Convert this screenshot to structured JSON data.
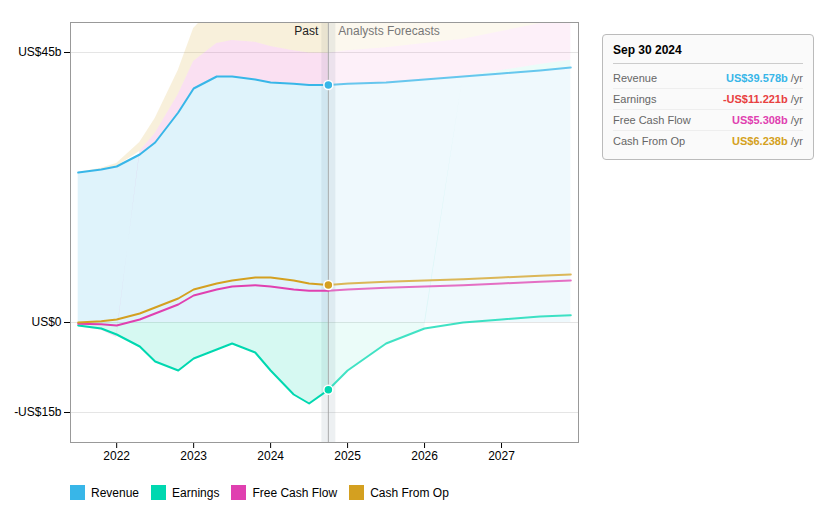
{
  "chart_data": {
    "type": "line",
    "xlim": [
      2021.4,
      2028.0
    ],
    "xticks": [
      2022,
      2023,
      2024,
      2025,
      2026,
      2027
    ],
    "ylim": [
      -20,
      50
    ],
    "yticks": [
      {
        "value": 45,
        "label": "US$45b"
      },
      {
        "value": 0,
        "label": "US$0"
      },
      {
        "value": -15,
        "label": "-US$15b"
      }
    ],
    "grid": true,
    "legend": "lower left",
    "divider_x": 2024.75,
    "annotations": [
      "Past",
      "Analysts Forecasts"
    ],
    "series": [
      {
        "name": "Revenue",
        "color": "#38b6e8",
        "past": {
          "x": [
            2021.5,
            2021.8,
            2022.0,
            2022.3,
            2022.5,
            2022.8,
            2023.0,
            2023.3,
            2023.5,
            2023.8,
            2024.0,
            2024.3,
            2024.5,
            2024.75
          ],
          "values": [
            25,
            25.5,
            26,
            28,
            30,
            35,
            39,
            41,
            41,
            40.5,
            40,
            39.8,
            39.6,
            39.578
          ]
        },
        "forecast": {
          "x": [
            2024.75,
            2025.0,
            2025.5,
            2026.0,
            2026.5,
            2027.0,
            2027.5,
            2027.9
          ],
          "values": [
            39.578,
            39.8,
            40.0,
            40.5,
            41.0,
            41.5,
            42.0,
            42.5
          ]
        }
      },
      {
        "name": "Earnings",
        "color": "#00d8b0",
        "past": {
          "x": [
            2021.5,
            2021.8,
            2022.0,
            2022.3,
            2022.5,
            2022.8,
            2023.0,
            2023.3,
            2023.5,
            2023.8,
            2024.0,
            2024.3,
            2024.5,
            2024.75
          ],
          "values": [
            -0.5,
            -1.0,
            -2.0,
            -4.0,
            -6.5,
            -8.0,
            -6.0,
            -4.5,
            -3.5,
            -5.0,
            -8.0,
            -12.0,
            -13.5,
            -11.221
          ]
        },
        "forecast": {
          "x": [
            2024.75,
            2025.0,
            2025.5,
            2026.0,
            2026.5,
            2027.0,
            2027.5,
            2027.9
          ],
          "values": [
            -11.221,
            -8.0,
            -3.5,
            -1.0,
            0.0,
            0.5,
            1.0,
            1.2
          ]
        }
      },
      {
        "name": "Free Cash Flow",
        "color": "#e040b0",
        "past": {
          "x": [
            2021.5,
            2021.8,
            2022.0,
            2022.3,
            2022.5,
            2022.8,
            2023.0,
            2023.3,
            2023.5,
            2023.8,
            2024.0,
            2024.3,
            2024.5,
            2024.75
          ],
          "values": [
            -0.2,
            -0.3,
            -0.5,
            0.5,
            1.5,
            3.0,
            4.5,
            5.5,
            6.0,
            6.2,
            6.0,
            5.5,
            5.3,
            5.308
          ]
        },
        "forecast": {
          "x": [
            2024.75,
            2025.0,
            2025.5,
            2026.0,
            2026.5,
            2027.0,
            2027.5,
            2027.9
          ],
          "values": [
            5.308,
            5.5,
            5.8,
            6.0,
            6.2,
            6.5,
            6.8,
            7.0
          ]
        }
      },
      {
        "name": "Cash From Op",
        "color": "#d4a020",
        "past": {
          "x": [
            2021.5,
            2021.8,
            2022.0,
            2022.3,
            2022.5,
            2022.8,
            2023.0,
            2023.3,
            2023.5,
            2023.8,
            2024.0,
            2024.3,
            2024.5,
            2024.75
          ],
          "values": [
            0.0,
            0.2,
            0.5,
            1.5,
            2.5,
            4.0,
            5.5,
            6.5,
            7.0,
            7.5,
            7.5,
            7.0,
            6.5,
            6.238
          ]
        },
        "forecast": {
          "x": [
            2024.75,
            2025.0,
            2025.5,
            2026.0,
            2026.5,
            2027.0,
            2027.5,
            2027.9
          ],
          "values": [
            6.238,
            6.5,
            6.8,
            7.0,
            7.2,
            7.5,
            7.8,
            8.0
          ]
        }
      }
    ],
    "markers": [
      {
        "name": "Revenue",
        "x": 2024.75,
        "y": 39.578
      },
      {
        "name": "Earnings",
        "x": 2024.75,
        "y": -11.221
      },
      {
        "name": "Cash From Op",
        "x": 2024.75,
        "y": 6.238
      }
    ],
    "tooltip": {
      "title": "Sep 30 2024",
      "rows": [
        {
          "label": "Revenue",
          "value_label": "US$39.578b",
          "suffix": " /yr",
          "color": "#38b6e8"
        },
        {
          "label": "Earnings",
          "value_label": "-US$11.221b",
          "suffix": " /yr",
          "color": "#e84040"
        },
        {
          "label": "Free Cash Flow",
          "value_label": "US$5.308b",
          "suffix": " /yr",
          "color": "#e040b0"
        },
        {
          "label": "Cash From Op",
          "value_label": "US$6.238b",
          "suffix": " /yr",
          "color": "#d4a020"
        }
      ]
    }
  }
}
